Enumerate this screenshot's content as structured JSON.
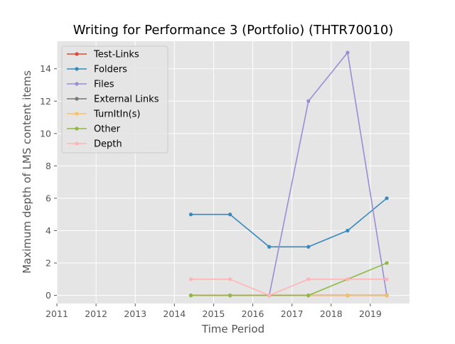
{
  "chart_data": {
    "type": "line",
    "title": "Writing for Performance 3 (Portfolio) (THTR70010)",
    "xlabel": "Time Period",
    "ylabel": "Maximum depth of LMS content items",
    "xlim": [
      2011,
      2020
    ],
    "ylim": [
      -0.5,
      15.7
    ],
    "x_ticks": [
      2011,
      2012,
      2013,
      2014,
      2015,
      2016,
      2017,
      2018,
      2019
    ],
    "y_ticks": [
      0,
      2,
      4,
      6,
      8,
      10,
      12,
      14
    ],
    "grid": true,
    "legend_position": "top-left",
    "x": [
      2014.42,
      2015.42,
      2016.42,
      2017.42,
      2018.42,
      2019.42
    ],
    "series": [
      {
        "name": "Test-Links",
        "color": "#e24a33",
        "values": [
          0,
          0,
          0,
          0,
          0,
          0
        ]
      },
      {
        "name": "Folders",
        "color": "#348abd",
        "values": [
          5,
          5,
          3,
          3,
          4,
          6
        ]
      },
      {
        "name": "Files",
        "color": "#988ed5",
        "values": [
          null,
          null,
          0,
          12,
          15,
          0
        ]
      },
      {
        "name": "External Links",
        "color": "#777777",
        "values": [
          0,
          0,
          0,
          0,
          0,
          0
        ]
      },
      {
        "name": "TurnItIn(s)",
        "color": "#fbc15e",
        "values": [
          0,
          0,
          0,
          0,
          0,
          0
        ]
      },
      {
        "name": "Other",
        "color": "#8eba42",
        "values": [
          0,
          0,
          0,
          0,
          1,
          2
        ]
      },
      {
        "name": "Depth",
        "color": "#ffb5b8",
        "values": [
          1,
          1,
          0,
          1,
          1,
          1
        ]
      }
    ]
  }
}
